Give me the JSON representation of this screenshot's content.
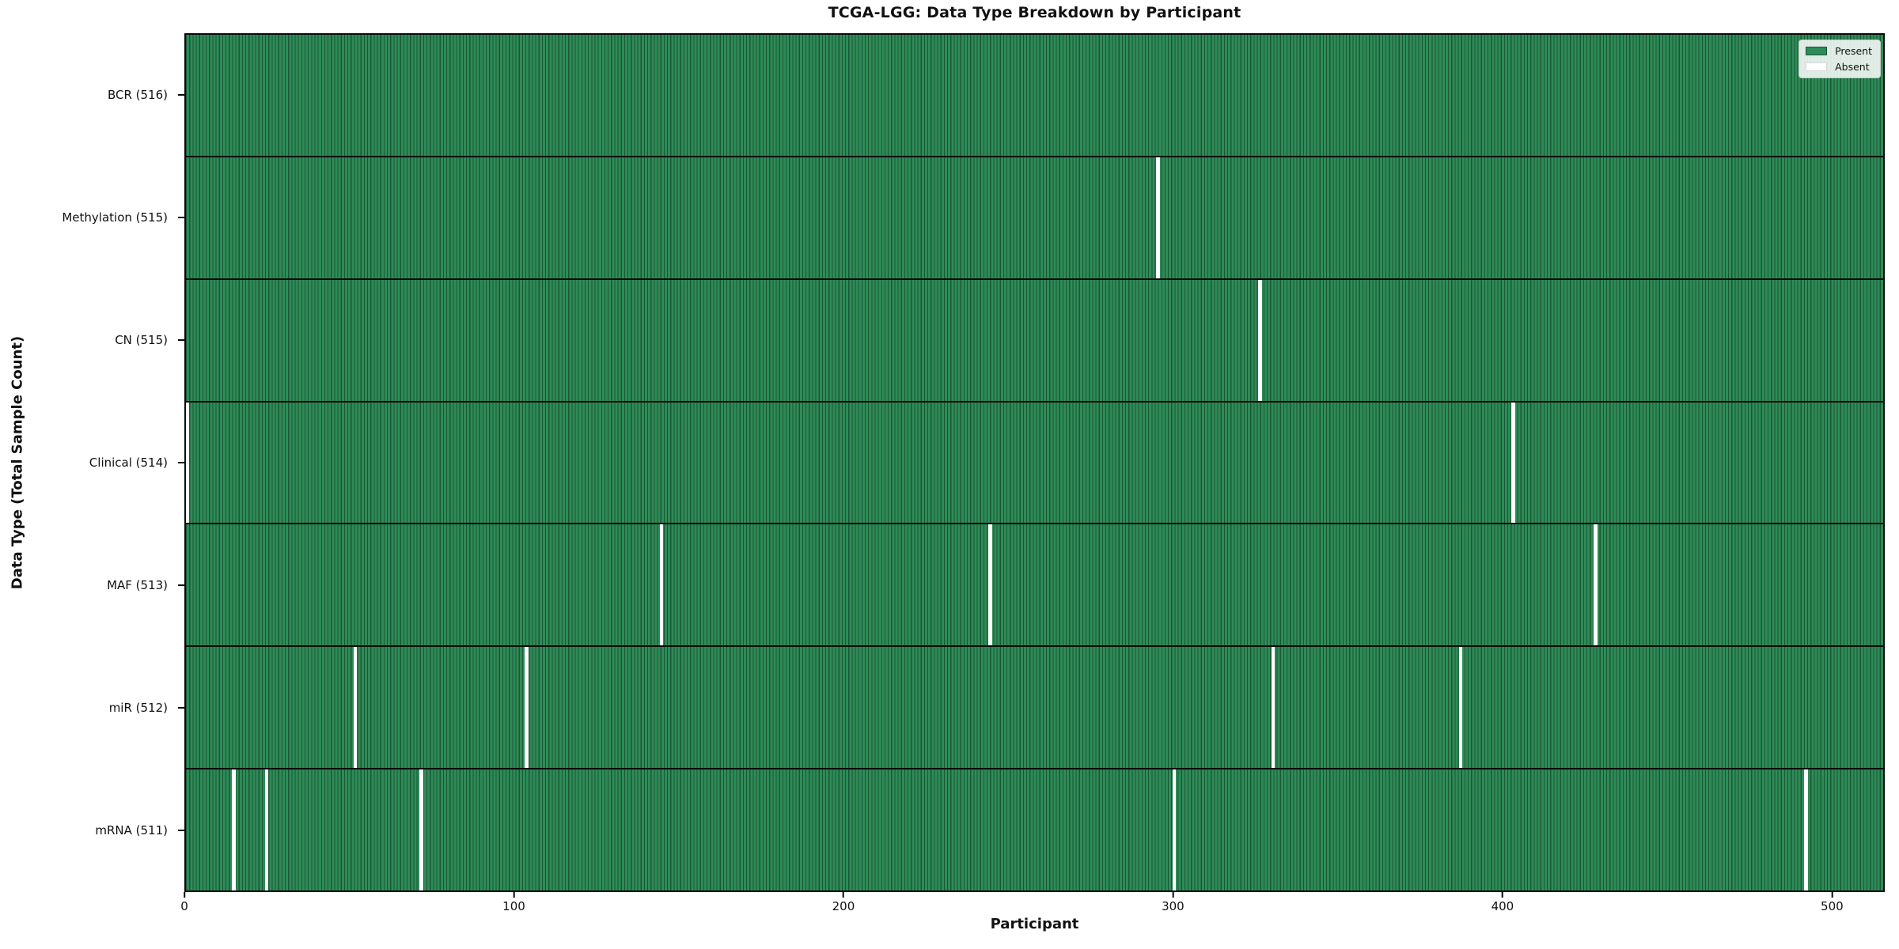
{
  "title": "TCGA-LGG: Data Type Breakdown by Participant",
  "axes": {
    "xlabel": "Participant",
    "ylabel": "Data Type (Total Sample Count)"
  },
  "legend": {
    "items": [
      {
        "label": "Present",
        "color": "#2e8b57",
        "edge": "#1b5736"
      },
      {
        "label": "Absent",
        "color": "#ffffff",
        "edge": "#d9d9d9"
      }
    ]
  },
  "colors": {
    "present": "#2e8b57",
    "bar_edge": "#1b5736",
    "absent": "#ffffff",
    "axis": "#0a0a0a"
  },
  "chart_data": {
    "type": "heatmap",
    "title": "TCGA-LGG: Data Type Breakdown by Participant",
    "xlabel": "Participant",
    "ylabel": "Data Type (Total Sample Count)",
    "legend": [
      "Present",
      "Absent"
    ],
    "legend_position": "upper right",
    "grid": false,
    "x_range": [
      0,
      516
    ],
    "total_participants": 516,
    "x_ticks": [
      0,
      100,
      200,
      300,
      400,
      500
    ],
    "rows": [
      {
        "data_type": "BCR",
        "label": "BCR (516)",
        "present_count": 516,
        "absent_participants": []
      },
      {
        "data_type": "Methylation",
        "label": "Methylation (515)",
        "present_count": 515,
        "absent_participants": [
          295
        ]
      },
      {
        "data_type": "CN",
        "label": "CN (515)",
        "present_count": 515,
        "absent_participants": [
          326
        ]
      },
      {
        "data_type": "Clinical",
        "label": "Clinical (514)",
        "present_count": 514,
        "absent_participants": [
          0,
          403
        ]
      },
      {
        "data_type": "MAF",
        "label": "MAF (513)",
        "present_count": 513,
        "absent_participants": [
          144,
          244,
          428
        ]
      },
      {
        "data_type": "miR",
        "label": "miR (512)",
        "present_count": 512,
        "absent_participants": [
          51,
          103,
          330,
          387
        ]
      },
      {
        "data_type": "mRNA",
        "label": "mRNA (511)",
        "present_count": 511,
        "absent_participants": [
          14,
          24,
          71,
          300,
          492
        ]
      }
    ]
  }
}
